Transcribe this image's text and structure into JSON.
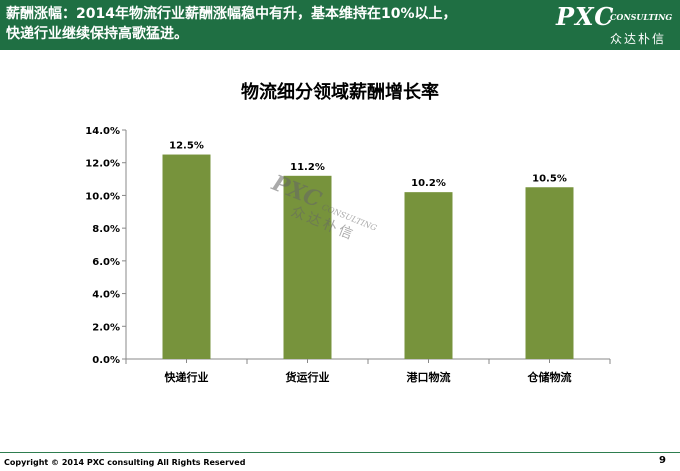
{
  "header": {
    "line1": "薪酬涨幅：2014年物流行业薪酬涨幅稳中有升，基本维持在10%以上，",
    "line2": "快递行业继续保持高歌猛进。",
    "bg_color": "#1f6f43"
  },
  "logo": {
    "main": "PXC",
    "sub": "CONSULTING",
    "cn": "众达朴信"
  },
  "watermark": {
    "main": "PXC",
    "sub": "CONSULTING",
    "cn": "众达朴信"
  },
  "chart_data": {
    "type": "bar",
    "title": "物流细分领域薪酬增长率",
    "categories": [
      "快递行业",
      "货运行业",
      "港口物流",
      "仓储物流"
    ],
    "values": [
      12.5,
      11.2,
      10.2,
      10.5
    ],
    "data_labels": [
      "12.5%",
      "11.2%",
      "10.2%",
      "10.5%"
    ],
    "ylim": [
      0,
      14
    ],
    "yticks": [
      "0.0%",
      "2.0%",
      "4.0%",
      "6.0%",
      "8.0%",
      "10.0%",
      "12.0%",
      "14.0%"
    ],
    "xlabel": "",
    "ylabel": "",
    "grid": false,
    "bar_color": "#77933c"
  },
  "footer": {
    "copyright": "Copyright © 2014  PXC consulting All Rights Reserved",
    "page": "9"
  }
}
